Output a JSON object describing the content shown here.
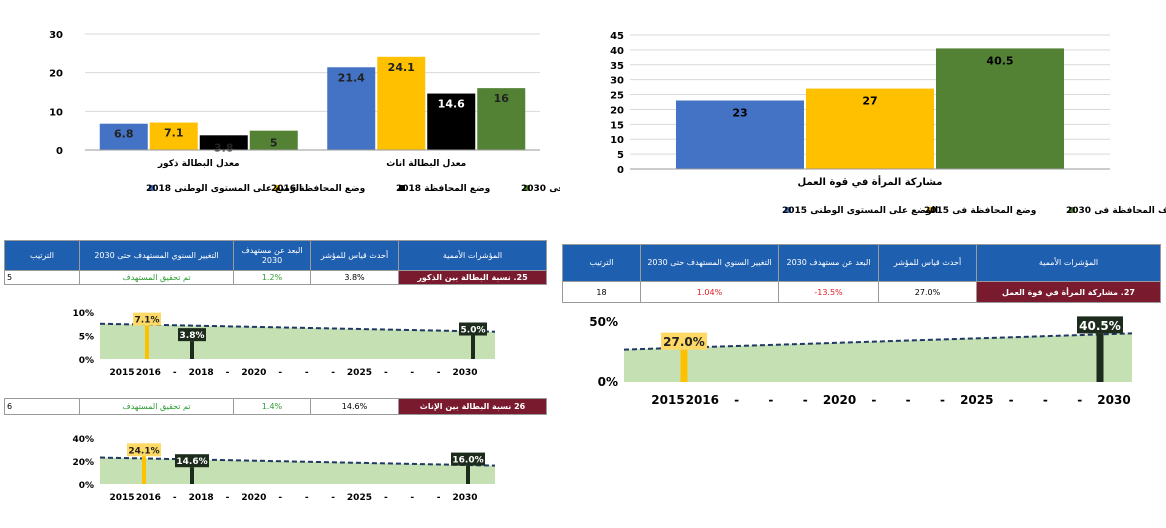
{
  "colors": {
    "blue": "#4472c4",
    "yellow": "#ffc000",
    "black": "#000000",
    "green": "#548235",
    "header": "#1f5fb0",
    "name_bg": "#7a1a2e",
    "band": "#c5e0b3",
    "track_red": "#e31b23",
    "track_green": "#2e9e32"
  },
  "chart_data": [
    {
      "type": "bar",
      "id": "unemployment",
      "categories": [
        "معدل البطالة ذكور",
        "معدل البطالة اناث"
      ],
      "series": [
        {
          "name": "الوضع على المستوى الوطنى 2018",
          "values": [
            6.8,
            21.4
          ],
          "color": "#4472c4"
        },
        {
          "name": "وضع المحافظة 2016",
          "values": [
            7.1,
            24.1
          ],
          "color": "#ffc000"
        },
        {
          "name": "وضع المحافظة 2018",
          "values": [
            3.8,
            14.6
          ],
          "color": "#000000"
        },
        {
          "name": "مستهدف المحافظة فى 2030",
          "values": [
            5,
            16
          ],
          "color": "#548235"
        }
      ],
      "ylim": [
        0,
        30
      ],
      "yticks": [
        0,
        10,
        20,
        30
      ],
      "grid": true,
      "legend": "bottom"
    },
    {
      "type": "bar",
      "id": "women_labor",
      "xlabel": "مشاركة المرأة في قوة العمل",
      "categories": [
        "مشاركة المرأة في قوة العمل"
      ],
      "series": [
        {
          "name": "الوضع على المستوى الوطنى 2015",
          "values": [
            23
          ],
          "color": "#4472c4"
        },
        {
          "name": "وضع المحافظة فى 2015",
          "values": [
            27
          ],
          "color": "#ffc000"
        },
        {
          "name": "مستهدف المحافظة فى 2030",
          "values": [
            40.5
          ],
          "color": "#548235"
        }
      ],
      "ylim": [
        0,
        45
      ],
      "yticks": [
        0,
        5,
        10,
        15,
        20,
        25,
        30,
        35,
        40,
        45
      ],
      "grid": true,
      "legend": "bottom"
    }
  ],
  "table_headers": {
    "name": "المؤشرات الأممية",
    "latest": "أحدث قياس للمؤشر",
    "gap": "البعد عن مستهدف 2030",
    "annual": "التغيير السنوي المستهدف حتى 2030",
    "rank": "الترتيب"
  },
  "rows": {
    "male": {
      "name": "25. نسبة البطالة بين الذكور",
      "latest": "3.8%",
      "gap": "1.2%",
      "annual": "تم تحقيق المستهدف",
      "rank": "5"
    },
    "female": {
      "name": "26 نسبة البطالة بين الإناث",
      "latest": "14.6%",
      "gap": "1.4%",
      "annual": "تم تحقيق المستهدف",
      "rank": "6"
    },
    "labor": {
      "name": "27. مشاركة المرأة في قوة العمل",
      "latest": "27.0%",
      "gap": "-13.5%",
      "annual": "1.04%",
      "rank": "18"
    }
  },
  "timelines": {
    "male": {
      "yticks": [
        "10%",
        "5%",
        "0%"
      ],
      "ymax": 10,
      "trend": [
        7.5,
        5.8
      ],
      "points": [
        {
          "year": 2016,
          "value": 7.1,
          "label": "7.1%",
          "style": "yellow"
        },
        {
          "year": 2018,
          "value": 3.8,
          "label": "3.8%",
          "style": "dark"
        },
        {
          "year": 2030,
          "value": 5.0,
          "label": "5.0%",
          "style": "dark"
        }
      ]
    },
    "female": {
      "yticks": [
        "40%",
        "20%",
        "0%"
      ],
      "ymax": 40,
      "trend": [
        23,
        16
      ],
      "points": [
        {
          "year": 2016,
          "value": 24.1,
          "label": "24.1%",
          "style": "yellow"
        },
        {
          "year": 2018,
          "value": 14.6,
          "label": "14.6%",
          "style": "dark"
        },
        {
          "year": 2030,
          "value": 16.0,
          "label": "16.0%",
          "style": "dark"
        }
      ]
    },
    "labor": {
      "yticks": [
        "50%",
        "0%"
      ],
      "ymax": 50,
      "trend": [
        27,
        40.5
      ],
      "points": [
        {
          "year": 2016,
          "value": 27.0,
          "label": "27.0%",
          "style": "yellow"
        },
        {
          "year": 2030,
          "value": 40.5,
          "label": "40.5%",
          "style": "dark"
        }
      ]
    }
  },
  "axis_small": [
    "2015",
    "2016",
    "-",
    "2018",
    "-",
    "2020",
    "-",
    "-",
    "-",
    "2025",
    "-",
    "-",
    "-",
    "2030"
  ],
  "axis_large": [
    "2015",
    "2016",
    "-",
    "-",
    "-",
    "2020",
    "-",
    "-",
    "-",
    "2025",
    "-",
    "-",
    "-",
    "2030"
  ]
}
